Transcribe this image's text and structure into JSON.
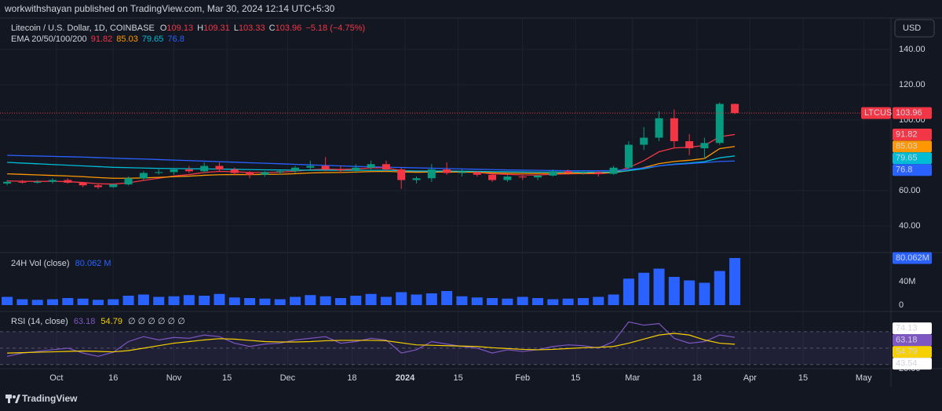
{
  "header": {
    "publisher": "workwithshayan published on TradingView.com, Mar 30, 2024 12:14 UTC+5:30",
    "currency_button": "USD",
    "logo": "TradingView"
  },
  "chart_data": [
    {
      "type": "candlestick",
      "title": "Litecoin / U.S. Dollar, 1D, COINBASE",
      "symbol": "LTCUSD",
      "field_labels": [
        "O",
        "H",
        "L",
        "C"
      ],
      "change_label": "−5.18 (−4.75%)",
      "up_color": "#089981",
      "down_color": "#f23645",
      "categories": [
        null,
        null,
        null,
        null,
        null,
        null,
        null,
        null,
        null,
        null,
        null,
        null,
        null,
        null,
        null,
        null,
        null,
        null,
        null,
        null,
        null,
        null,
        null,
        null,
        null,
        null,
        null,
        null,
        null,
        null,
        null,
        null,
        null,
        null,
        null,
        null,
        null,
        null,
        null,
        null,
        null,
        null,
        null,
        null,
        null,
        null,
        null,
        null,
        null
      ],
      "open": [
        64,
        65,
        64.5,
        65,
        66,
        64.5,
        63,
        62,
        63.5,
        67,
        70,
        70.5,
        72,
        71,
        74,
        72,
        70,
        69,
        70.5,
        71,
        73,
        74,
        72,
        71.5,
        73,
        75,
        72,
        66,
        67,
        72,
        70,
        70.5,
        69,
        66,
        68,
        67.5,
        68.5,
        71,
        70,
        70.5,
        69.5,
        73,
        86,
        90,
        101,
        88,
        84,
        87,
        109.13
      ],
      "high": [
        66,
        66,
        66,
        67,
        67,
        65,
        64,
        64,
        68,
        71,
        72,
        73,
        74,
        76,
        76,
        73,
        71,
        71,
        72,
        74,
        77,
        79,
        74,
        75,
        77,
        77,
        73,
        68,
        75,
        76,
        72,
        71,
        70,
        69,
        69,
        69,
        72,
        72,
        71,
        71,
        74,
        88,
        96,
        105,
        106,
        92,
        90,
        110,
        109.31
      ],
      "low": [
        63,
        64,
        64,
        64,
        64,
        62,
        61,
        61.5,
        63,
        66,
        69,
        69,
        70,
        70,
        71,
        69,
        67,
        68,
        69,
        70,
        72,
        71,
        70,
        70,
        72,
        71,
        61,
        64,
        65,
        69,
        68,
        68,
        65,
        65,
        66,
        66,
        68,
        69,
        69,
        68,
        69,
        72,
        83,
        88,
        84,
        80,
        78,
        86,
        103.33
      ],
      "close": [
        65,
        64.5,
        65,
        66,
        64.5,
        63,
        62,
        63.5,
        67,
        70,
        70.5,
        72,
        71,
        74,
        72,
        70,
        69,
        70.5,
        71,
        73,
        74,
        72,
        71.5,
        73,
        75,
        72,
        66,
        67,
        72,
        70,
        70.5,
        69,
        66,
        68,
        67.5,
        68.5,
        71,
        70,
        70.5,
        69.5,
        73,
        86,
        90,
        101,
        88,
        84,
        87,
        109.13,
        103.96
      ],
      "overlays": {
        "title": "EMA 20/50/100/200",
        "series": [
          {
            "color": "#f23645",
            "values": [
              65.5,
              65.3,
              65.2,
              65.3,
              65.1,
              64.6,
              63.9,
              63.7,
              64.4,
              65.8,
              67,
              68.3,
              69.1,
              70.3,
              70.9,
              70.7,
              70.3,
              70.3,
              70.4,
              71,
              71.8,
              72.1,
              72,
              72.2,
              72.9,
              72.9,
              71.3,
              70.6,
              71,
              71,
              70.8,
              70.4,
              69.5,
              69.2,
              68.9,
              68.8,
              69.3,
              69.5,
              69.7,
              69.6,
              70.3,
              73,
              77,
              82,
              84.2,
              84.6,
              85.6,
              90.5,
              91.82
            ]
          },
          {
            "color": "#ff9800",
            "values": [
              69.5,
              69.2,
              68.9,
              68.6,
              68.3,
              67.9,
              67.4,
              67,
              67,
              67.2,
              67.5,
              67.9,
              68.2,
              68.7,
              69,
              69.1,
              69.1,
              69.2,
              69.3,
              69.6,
              70,
              70.2,
              70.3,
              70.5,
              70.8,
              70.9,
              70.6,
              70.4,
              70.5,
              70.5,
              70.5,
              70.4,
              70.1,
              69.9,
              69.8,
              69.7,
              69.8,
              69.8,
              69.9,
              69.9,
              70.2,
              71.3,
              73,
              75.3,
              76.5,
              77.2,
              78.2,
              83.8,
              85.03
            ]
          },
          {
            "color": "#00bcd4",
            "values": [
              76,
              75.6,
              75.2,
              74.8,
              74.4,
              74,
              73.6,
              73.2,
              73,
              72.8,
              72.6,
              72.5,
              72.4,
              72.3,
              72.2,
              72.1,
              71.9,
              71.8,
              71.7,
              71.6,
              71.6,
              71.6,
              71.5,
              71.5,
              71.5,
              71.5,
              71.3,
              71.1,
              71.1,
              71.1,
              71,
              70.9,
              70.8,
              70.7,
              70.6,
              70.5,
              70.5,
              70.5,
              70.5,
              70.5,
              70.6,
              71.3,
              72.4,
              74,
              75,
              75.6,
              76.4,
              78.6,
              79.65
            ]
          },
          {
            "color": "#2962ff",
            "values": [
              80,
              79.8,
              79.6,
              79.4,
              79.2,
              79,
              78.7,
              78.4,
              78.1,
              77.9,
              77.6,
              77.3,
              77,
              76.7,
              76.4,
              76.1,
              75.8,
              75.5,
              75.2,
              74.9,
              74.6,
              74.3,
              74,
              73.7,
              73.5,
              73.3,
              73.1,
              72.9,
              72.7,
              72.5,
              72.3,
              72.1,
              71.9,
              71.7,
              71.6,
              71.5,
              71.4,
              71.3,
              71.3,
              71.3,
              71.4,
              72,
              72.8,
              74,
              74.8,
              75.3,
              75.9,
              76.5,
              76.8
            ]
          }
        ]
      },
      "xlim": [
        -0.47,
        58.3
      ],
      "xticks": [
        {
          "value": 3.25,
          "label": "Oct"
        },
        {
          "value": 7,
          "label": "16"
        },
        {
          "value": 11,
          "label": "Nov"
        },
        {
          "value": 14.5,
          "label": "15"
        },
        {
          "value": 18.5,
          "label": "Dec"
        },
        {
          "value": 22.75,
          "label": "18"
        },
        {
          "value": 26.25,
          "label": "2024"
        },
        {
          "value": 29.75,
          "label": "15"
        },
        {
          "value": 34,
          "label": "Feb"
        },
        {
          "value": 37.5,
          "label": "15"
        },
        {
          "value": 41.25,
          "label": "Mar"
        },
        {
          "value": 45.5,
          "label": "18"
        },
        {
          "value": 49,
          "label": "Apr"
        },
        {
          "value": 52.5,
          "label": "15"
        },
        {
          "value": 56.5,
          "label": "May"
        }
      ],
      "ylim": [
        24.9,
        157.8
      ],
      "yticks": [
        {
          "value": 40,
          "label": "40.00"
        },
        {
          "value": 60,
          "label": "60.00"
        },
        {
          "value": 100,
          "label": "100.00"
        },
        {
          "value": 120,
          "label": "120.00"
        },
        {
          "value": 140,
          "label": "140.00"
        }
      ],
      "grid": true
    },
    {
      "type": "bar",
      "title": "24H Vol (close)",
      "color": "#2962ff",
      "last_value_labels": [
        "80.062 M",
        "80.062M"
      ],
      "values": [
        14000000,
        10000000,
        9000000,
        10000000,
        12000000,
        11000000,
        9000000,
        10000000,
        16000000,
        18000000,
        14000000,
        15000000,
        17000000,
        16000000,
        19000000,
        13000000,
        12000000,
        11000000,
        10000000,
        14000000,
        17000000,
        15000000,
        12000000,
        16000000,
        19000000,
        14000000,
        22000000,
        18000000,
        20000000,
        24000000,
        15000000,
        13000000,
        12000000,
        11000000,
        14000000,
        12000000,
        10000000,
        11000000,
        12000000,
        14000000,
        18000000,
        45000000,
        55000000,
        62000000,
        48000000,
        42000000,
        38000000,
        58000000,
        80062000
      ],
      "ylim": [
        -10670000,
        89330000
      ],
      "yticks": [
        {
          "value": 0,
          "label": "0"
        },
        {
          "value": 40000000,
          "label": "40M"
        }
      ]
    },
    {
      "type": "line",
      "title": "RSI (14, close)",
      "placeholders": "∅ ∅ ∅ ∅ ∅ ∅",
      "series": [
        {
          "color": "#7e57c2",
          "values": [
            40,
            44,
            46,
            48,
            50,
            44,
            40,
            45,
            58,
            64,
            60,
            63,
            62,
            66,
            64,
            56,
            52,
            55,
            56,
            60,
            62,
            64,
            56,
            58,
            62,
            60,
            44,
            48,
            58,
            55,
            52,
            50,
            44,
            48,
            46,
            48,
            52,
            54,
            53,
            50,
            58,
            82,
            78,
            80,
            62,
            56,
            58,
            66,
            63.18
          ]
        },
        {
          "color": "#f7d000",
          "values": [
            44,
            44.5,
            45,
            45.5,
            46,
            46.5,
            46,
            45.5,
            47,
            50,
            53,
            56,
            58,
            60,
            61.5,
            61,
            59.5,
            58,
            57.5,
            57.5,
            58,
            59,
            59.5,
            59.5,
            59.5,
            59,
            56.5,
            54,
            53.5,
            53,
            52.5,
            52,
            50.5,
            49.5,
            48.5,
            48,
            48.5,
            49.5,
            50.5,
            51,
            52,
            56,
            61,
            66,
            68,
            66,
            60,
            56,
            54.79
          ]
        }
      ],
      "levels": [
        70,
        50,
        30
      ],
      "markers": [
        74.13,
        43.54
      ],
      "ylim": [
        25,
        94.8
      ],
      "yticks": [
        {
          "value": 25,
          "label": "25.00"
        }
      ]
    }
  ]
}
